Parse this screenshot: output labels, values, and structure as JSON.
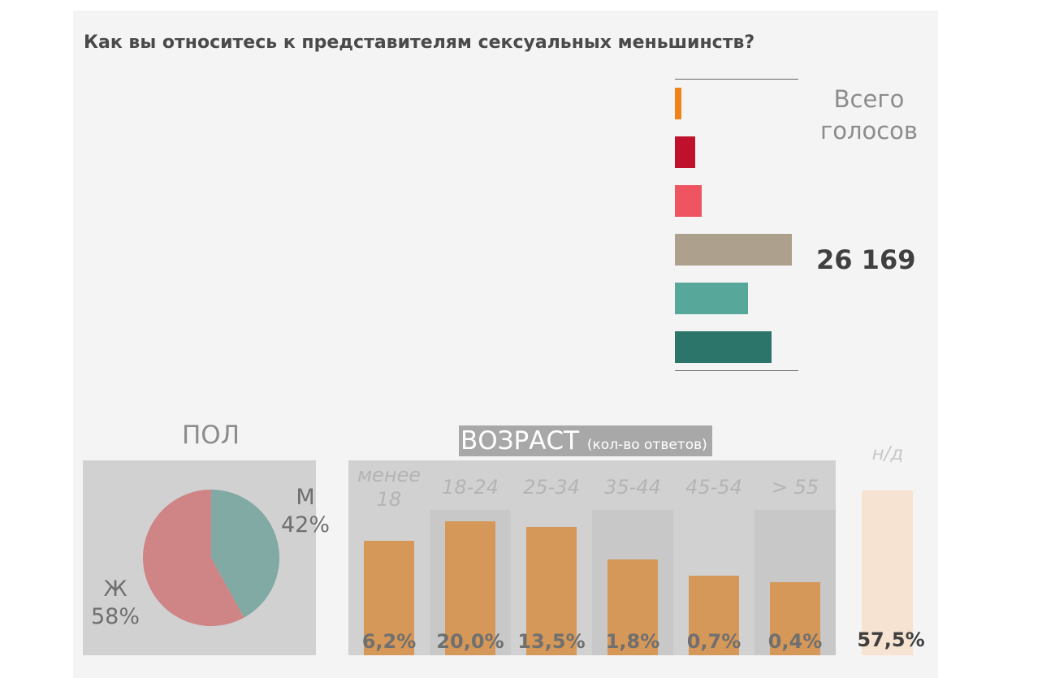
{
  "title": "Как вы относитесь к представителям сексуальных меньшинств?",
  "summary": {
    "total_label": "Всего голосов",
    "total_value": "26 169"
  },
  "colors": {
    "background_panel": "#f4f4f4",
    "box": "#d1d1d1",
    "age_bar": "#d69858",
    "nd_bar": "#f7e3d2",
    "male": "#80aaa3",
    "female": "#cf8486"
  },
  "chart_data": [
    {
      "type": "bar",
      "orientation": "horizontal",
      "series": [
        {
          "color": "#f08218",
          "value": 2
        },
        {
          "color": "#bf102c",
          "value": 6
        },
        {
          "color": "#ee5560",
          "value": 8
        },
        {
          "color": "#ada08c",
          "value": 35
        },
        {
          "color": "#57a89a",
          "value": 22
        },
        {
          "color": "#2b756b",
          "value": 29
        }
      ],
      "xlim": [
        0,
        37
      ]
    },
    {
      "type": "pie",
      "title": "ПОЛ",
      "slices": [
        {
          "label": "М",
          "value": 42,
          "display": "42%",
          "color": "#80aaa3"
        },
        {
          "label": "Ж",
          "value": 58,
          "display": "58%",
          "color": "#cf8486"
        }
      ]
    },
    {
      "type": "bar",
      "title": "ВОЗРАСТ",
      "subtitle": "(кол-во ответов)",
      "categories": [
        "менее 18",
        "18-24",
        "25-34",
        "35-44",
        "45-54",
        "> 55"
      ],
      "bar_heights_relative": [
        0.79,
        0.92,
        0.88,
        0.66,
        0.55,
        0.5
      ],
      "percent_labels": [
        "6,2%",
        "20,0%",
        "13,5%",
        "1,8%",
        "0,7%",
        "0,4%"
      ],
      "extra": {
        "label": "н/д",
        "percent_label": "57,5%"
      }
    }
  ]
}
